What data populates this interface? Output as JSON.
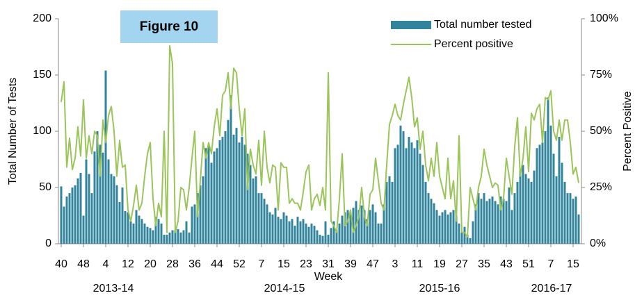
{
  "chart_data": {
    "type": "bar-line",
    "annotation": "Figure 10",
    "x_label": "Week",
    "y_label": "Total Number of Tests",
    "y2_label": "Percent Positive",
    "season_labels": [
      "2013-14",
      "2014-15",
      "2015-16",
      "2016-17"
    ],
    "categories": [
      "40",
      null,
      null,
      null,
      null,
      null,
      null,
      null,
      "48",
      null,
      null,
      null,
      null,
      null,
      null,
      null,
      "4",
      null,
      null,
      null,
      null,
      null,
      null,
      null,
      "12",
      null,
      null,
      null,
      null,
      null,
      null,
      null,
      "20",
      null,
      null,
      null,
      null,
      null,
      null,
      null,
      "28",
      null,
      null,
      null,
      null,
      null,
      null,
      null,
      "36",
      null,
      null,
      null,
      null,
      null,
      null,
      null,
      "44",
      null,
      null,
      null,
      null,
      null,
      null,
      null,
      "52",
      null,
      null,
      null,
      null,
      null,
      null,
      null,
      "7",
      null,
      null,
      null,
      null,
      null,
      null,
      null,
      "15",
      null,
      null,
      null,
      null,
      null,
      null,
      null,
      "23",
      null,
      null,
      null,
      null,
      null,
      null,
      null,
      "31",
      null,
      null,
      null,
      null,
      null,
      null,
      null,
      "39",
      null,
      null,
      null,
      null,
      null,
      null,
      null,
      "47",
      null,
      null,
      null,
      null,
      null,
      null,
      null,
      "3",
      null,
      null,
      null,
      null,
      null,
      null,
      null,
      "11",
      null,
      null,
      null,
      null,
      null,
      null,
      null,
      "19",
      null,
      null,
      null,
      null,
      null,
      null,
      null,
      "27",
      null,
      null,
      null,
      null,
      null,
      null,
      null,
      "35",
      null,
      null,
      null,
      null,
      null,
      null,
      null,
      "43",
      null,
      null,
      null,
      null,
      null,
      null,
      null,
      "51",
      null,
      null,
      null,
      null,
      null,
      null,
      null,
      "7",
      null,
      null,
      null,
      null,
      null,
      null,
      null,
      "15",
      null,
      null
    ],
    "series": [
      {
        "name": "Total number tested",
        "color": "#31849b",
        "kind": "bar",
        "values": [
          51,
          33,
          42,
          45,
          50,
          52,
          58,
          63,
          25,
          75,
          62,
          45,
          82,
          100,
          88,
          81,
          154,
          75,
          62,
          60,
          52,
          37,
          50,
          29,
          28,
          20,
          18,
          30,
          25,
          22,
          18,
          15,
          14,
          12,
          24,
          22,
          18,
          8,
          8,
          10,
          12,
          12,
          13,
          10,
          12,
          20,
          10,
          33,
          35,
          45,
          52,
          60,
          85,
          88,
          72,
          82,
          85,
          92,
          95,
          100,
          110,
          132,
          97,
          103,
          90,
          95,
          88,
          80,
          70,
          58,
          60,
          45,
          45,
          40,
          35,
          28,
          26,
          32,
          24,
          22,
          28,
          25,
          20,
          22,
          16,
          24,
          20,
          22,
          18,
          15,
          18,
          16,
          12,
          8,
          7,
          20,
          8,
          14,
          20,
          12,
          18,
          25,
          28,
          30,
          28,
          32,
          38,
          30,
          34,
          30,
          22,
          30,
          35,
          28,
          18,
          18,
          35,
          55,
          60,
          55,
          85,
          88,
          105,
          100,
          85,
          95,
          90,
          85,
          92,
          80,
          70,
          55,
          45,
          40,
          36,
          30,
          25,
          28,
          30,
          26,
          28,
          30,
          25,
          18,
          10,
          15,
          8,
          5,
          20,
          35,
          45,
          40,
          45,
          38,
          40,
          42,
          38,
          35,
          42,
          40,
          38,
          50,
          30,
          45,
          55,
          65,
          70,
          62,
          58,
          55,
          65,
          85,
          88,
          90,
          100,
          130,
          105,
          80,
          60,
          95,
          72,
          55,
          45,
          45,
          40,
          42,
          26
        ]
      },
      {
        "name": "Percent positive",
        "color": "#9bc45a",
        "kind": "line",
        "axis": "y2",
        "values": [
          63,
          72,
          34,
          47,
          33,
          38,
          52,
          39,
          64,
          38,
          48,
          40,
          50,
          48,
          30,
          55,
          45,
          57,
          61,
          50,
          30,
          46,
          34,
          35,
          15,
          10,
          17,
          26,
          15,
          18,
          30,
          40,
          45,
          20,
          8,
          18,
          12,
          50,
          5,
          88,
          80,
          5,
          10,
          25,
          24,
          15,
          25,
          38,
          50,
          12,
          28,
          45,
          38,
          45,
          40,
          52,
          60,
          48,
          66,
          68,
          76,
          60,
          78,
          76,
          60,
          48,
          60,
          24,
          42,
          35,
          31,
          46,
          26,
          50,
          34,
          27,
          35,
          34,
          15,
          36,
          34,
          34,
          18,
          20,
          18,
          18,
          15,
          23,
          32,
          35,
          15,
          20,
          22,
          17,
          25,
          15,
          76,
          10,
          8,
          5,
          20,
          40,
          8,
          10,
          15,
          5,
          8,
          12,
          25,
          12,
          8,
          22,
          24,
          38,
          28,
          18,
          15,
          35,
          53,
          57,
          62,
          57,
          55,
          62,
          68,
          74,
          65,
          52,
          56,
          42,
          50,
          35,
          28,
          38,
          30,
          45,
          30,
          25,
          20,
          38,
          20,
          28,
          10,
          48,
          5,
          5,
          3,
          25,
          20,
          15,
          25,
          30,
          42,
          35,
          30,
          25,
          27,
          26,
          15,
          20,
          38,
          30,
          22,
          43,
          56,
          30,
          38,
          52,
          32,
          58,
          55,
          60,
          62,
          45,
          65,
          64,
          68,
          50,
          46,
          55,
          46,
          55,
          55,
          45,
          31,
          34,
          27
        ]
      }
    ],
    "ylim": [
      0,
      200
    ],
    "yticks": [
      0,
      50,
      100,
      150,
      200
    ],
    "y2lim": [
      0,
      100
    ],
    "y2ticks": [
      {
        "value": 0,
        "label": "0%"
      },
      {
        "value": 25,
        "label": "25%"
      },
      {
        "value": 50,
        "label": "50%"
      },
      {
        "value": 75,
        "label": "75%"
      },
      {
        "value": 100,
        "label": "100%"
      }
    ],
    "legend": "top-right",
    "grid": false
  }
}
